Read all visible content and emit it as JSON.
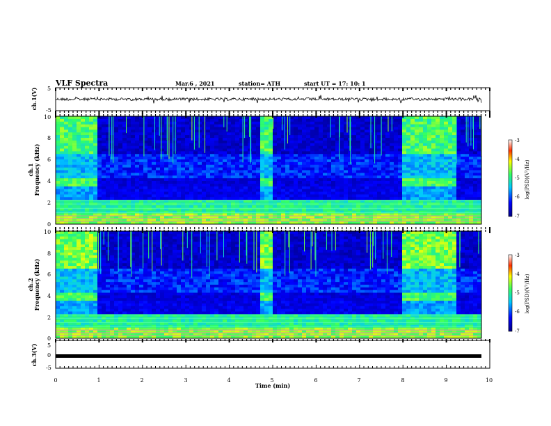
{
  "header": {
    "title": "VLF Spectra",
    "date": "Mar.6 , 2021",
    "station": "station= ATH",
    "start": "start UT =  17: 10: 1"
  },
  "chart_data": [
    {
      "type": "line",
      "ylabel": "ch.1(V)",
      "ylim": [
        -5,
        5
      ],
      "yticks": [
        "5",
        "-5"
      ],
      "xlim": [
        0,
        10
      ],
      "line_color": "#000000",
      "description_values": {
        "baseline": 0
      }
    },
    {
      "type": "heatmap",
      "ylabel": "ch.1\nFrequency (kHz)",
      "ylabel_line1": "ch.1",
      "ylabel_line2": "Frequency (kHz)",
      "ylim": [
        0,
        10
      ],
      "yticks": [
        "0",
        "2",
        "4",
        "6",
        "8",
        "10"
      ],
      "xlim": [
        0,
        10
      ],
      "quiet_intervals_min": [
        [
          0.9,
          4.65
        ],
        [
          5.0,
          7.9
        ],
        [
          9.15,
          9.85
        ]
      ],
      "colorbar": {
        "label": "log(PSD)(V²/Hz)",
        "min": -7,
        "max": -3,
        "ticks": [
          "-3",
          "-4",
          "-5",
          "-6",
          "-7"
        ]
      }
    },
    {
      "type": "heatmap",
      "ylabel": "ch.2\nFrequency (kHz)",
      "ylabel_line1": "ch.2",
      "ylabel_line2": "Frequency (kHz)",
      "ylim": [
        0,
        10
      ],
      "yticks": [
        "0",
        "2",
        "4",
        "6",
        "8",
        "10"
      ],
      "xlim": [
        0,
        10
      ],
      "quiet_intervals_min": [
        [
          0.9,
          4.65
        ],
        [
          5.0,
          7.9
        ],
        [
          9.15,
          9.85
        ]
      ],
      "colorbar": {
        "label": "log(PSD)(V²/Hz)",
        "min": -7,
        "max": -3,
        "ticks": [
          "-3",
          "-4",
          "-5",
          "-6",
          "-7"
        ]
      }
    },
    {
      "type": "line",
      "ylabel": "ch.3(V)",
      "ylim": [
        -5,
        5
      ],
      "yticks": [
        "5",
        "0",
        "-5"
      ],
      "xlim": [
        0,
        10
      ],
      "xlabel": "Time (min)",
      "xticks": [
        "0",
        "1",
        "2",
        "3",
        "4",
        "5",
        "6",
        "7",
        "8",
        "9",
        "10"
      ],
      "line_color": "#000000"
    }
  ]
}
